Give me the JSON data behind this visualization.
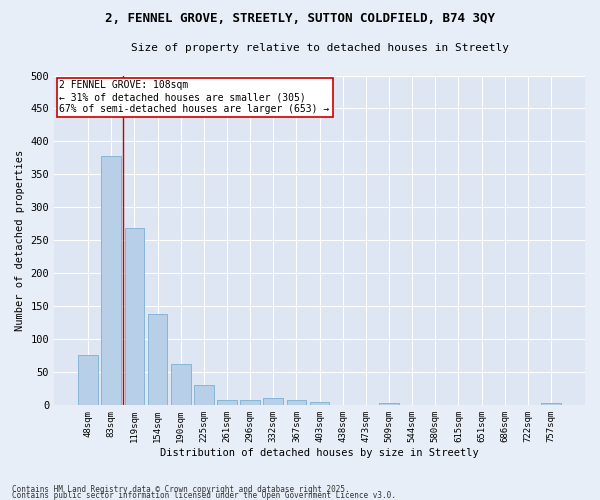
{
  "title1": "2, FENNEL GROVE, STREETLY, SUTTON COLDFIELD, B74 3QY",
  "title2": "Size of property relative to detached houses in Streetly",
  "xlabel": "Distribution of detached houses by size in Streetly",
  "ylabel": "Number of detached properties",
  "categories": [
    "48sqm",
    "83sqm",
    "119sqm",
    "154sqm",
    "190sqm",
    "225sqm",
    "261sqm",
    "296sqm",
    "332sqm",
    "367sqm",
    "403sqm",
    "438sqm",
    "473sqm",
    "509sqm",
    "544sqm",
    "580sqm",
    "615sqm",
    "651sqm",
    "686sqm",
    "722sqm",
    "757sqm"
  ],
  "values": [
    75,
    378,
    268,
    138,
    62,
    30,
    8,
    8,
    10,
    8,
    5,
    0,
    0,
    3,
    0,
    0,
    0,
    0,
    0,
    0,
    3
  ],
  "bar_color": "#b8cfe8",
  "bar_edge_color": "#7aafd4",
  "fig_bg_color": "#e8eef7",
  "ax_bg_color": "#dde6f2",
  "grid_color": "#ffffff",
  "vline_color": "#cc0000",
  "vline_x": 1.5,
  "annotation_text": "2 FENNEL GROVE: 108sqm\n← 31% of detached houses are smaller (305)\n67% of semi-detached houses are larger (653) →",
  "annotation_box_color": "#ffffff",
  "annotation_box_edge": "#cc0000",
  "footer1": "Contains HM Land Registry data © Crown copyright and database right 2025.",
  "footer2": "Contains public sector information licensed under the Open Government Licence v3.0.",
  "ylim": [
    0,
    500
  ],
  "yticks": [
    0,
    50,
    100,
    150,
    200,
    250,
    300,
    350,
    400,
    450,
    500
  ]
}
